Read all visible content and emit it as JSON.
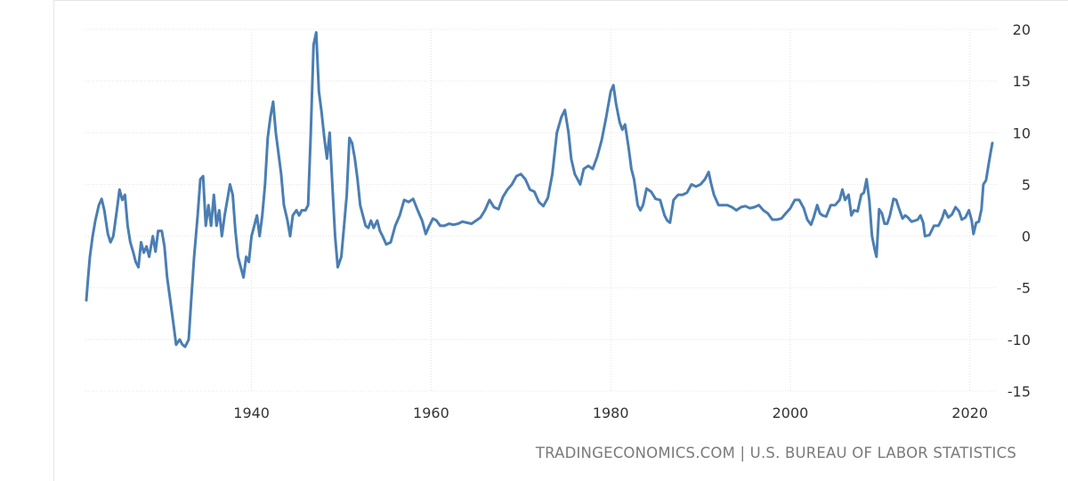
{
  "source_label": "TRADINGECONOMICS.COM | U.S. BUREAU OF LABOR STATISTICS",
  "chart_data": {
    "type": "line",
    "title": "",
    "xlabel": "",
    "ylabel": "",
    "xlim": [
      1921.5,
      2023
    ],
    "ylim": [
      -15,
      20
    ],
    "x_ticks": [
      1940,
      1960,
      1980,
      2000,
      2020
    ],
    "y_ticks": [
      -15,
      -10,
      -5,
      0,
      5,
      10,
      15,
      20
    ],
    "y_axis_side": "right",
    "grid": true,
    "line_color": "#4a7eb3",
    "series": [
      {
        "points": [
          [
            1921.6,
            -6.2
          ],
          [
            1921.8,
            -4.0
          ],
          [
            1922.0,
            -2.0
          ],
          [
            1922.3,
            0.0
          ],
          [
            1922.6,
            1.5
          ],
          [
            1923.0,
            3.0
          ],
          [
            1923.3,
            3.6
          ],
          [
            1923.6,
            2.5
          ],
          [
            1924.0,
            0.2
          ],
          [
            1924.3,
            -0.6
          ],
          [
            1924.6,
            0.0
          ],
          [
            1925.0,
            2.5
          ],
          [
            1925.3,
            4.5
          ],
          [
            1925.6,
            3.5
          ],
          [
            1925.9,
            4.0
          ],
          [
            1926.2,
            1.0
          ],
          [
            1926.5,
            -0.6
          ],
          [
            1926.8,
            -1.5
          ],
          [
            1927.1,
            -2.5
          ],
          [
            1927.4,
            -3.0
          ],
          [
            1927.7,
            -0.6
          ],
          [
            1928.0,
            -1.6
          ],
          [
            1928.3,
            -1.0
          ],
          [
            1928.6,
            -2.0
          ],
          [
            1929.0,
            0.0
          ],
          [
            1929.3,
            -1.5
          ],
          [
            1929.6,
            0.5
          ],
          [
            1930.0,
            0.5
          ],
          [
            1930.3,
            -1.0
          ],
          [
            1930.6,
            -4.0
          ],
          [
            1931.0,
            -6.5
          ],
          [
            1931.3,
            -8.5
          ],
          [
            1931.6,
            -10.5
          ],
          [
            1932.0,
            -10.0
          ],
          [
            1932.3,
            -10.5
          ],
          [
            1932.6,
            -10.7
          ],
          [
            1933.0,
            -10.0
          ],
          [
            1933.3,
            -6.0
          ],
          [
            1933.6,
            -2.0
          ],
          [
            1934.0,
            2.0
          ],
          [
            1934.3,
            5.5
          ],
          [
            1934.6,
            5.8
          ],
          [
            1934.9,
            1.0
          ],
          [
            1935.2,
            3.0
          ],
          [
            1935.5,
            1.0
          ],
          [
            1935.8,
            4.0
          ],
          [
            1936.1,
            1.0
          ],
          [
            1936.4,
            2.5
          ],
          [
            1936.7,
            0.0
          ],
          [
            1937.0,
            2.0
          ],
          [
            1937.3,
            3.5
          ],
          [
            1937.6,
            5.0
          ],
          [
            1937.9,
            4.0
          ],
          [
            1938.2,
            0.5
          ],
          [
            1938.5,
            -2.0
          ],
          [
            1938.8,
            -3.0
          ],
          [
            1939.1,
            -4.0
          ],
          [
            1939.4,
            -2.0
          ],
          [
            1939.7,
            -2.5
          ],
          [
            1940.0,
            0.0
          ],
          [
            1940.3,
            1.0
          ],
          [
            1940.6,
            2.0
          ],
          [
            1940.9,
            0.0
          ],
          [
            1941.2,
            2.0
          ],
          [
            1941.5,
            5.0
          ],
          [
            1941.8,
            9.5
          ],
          [
            1942.1,
            11.5
          ],
          [
            1942.4,
            13.0
          ],
          [
            1942.7,
            10.0
          ],
          [
            1943.0,
            8.0
          ],
          [
            1943.3,
            6.0
          ],
          [
            1943.6,
            3.0
          ],
          [
            1944.0,
            1.5
          ],
          [
            1944.3,
            0.0
          ],
          [
            1944.6,
            2.0
          ],
          [
            1945.0,
            2.5
          ],
          [
            1945.3,
            2.0
          ],
          [
            1945.6,
            2.5
          ],
          [
            1946.0,
            2.5
          ],
          [
            1946.3,
            3.0
          ],
          [
            1946.6,
            10.0
          ],
          [
            1946.9,
            18.5
          ],
          [
            1947.2,
            19.7
          ],
          [
            1947.5,
            14.0
          ],
          [
            1947.8,
            12.0
          ],
          [
            1948.1,
            9.5
          ],
          [
            1948.4,
            7.5
          ],
          [
            1948.7,
            10.0
          ],
          [
            1949.0,
            5.0
          ],
          [
            1949.3,
            0.0
          ],
          [
            1949.6,
            -3.0
          ],
          [
            1950.0,
            -2.0
          ],
          [
            1950.3,
            1.0
          ],
          [
            1950.6,
            4.0
          ],
          [
            1950.9,
            9.5
          ],
          [
            1951.2,
            9.0
          ],
          [
            1951.5,
            7.5
          ],
          [
            1951.8,
            5.5
          ],
          [
            1952.1,
            3.0
          ],
          [
            1952.4,
            2.0
          ],
          [
            1952.7,
            1.0
          ],
          [
            1953.0,
            0.8
          ],
          [
            1953.3,
            1.5
          ],
          [
            1953.6,
            0.8
          ],
          [
            1954.0,
            1.5
          ],
          [
            1954.3,
            0.5
          ],
          [
            1954.6,
            0.0
          ],
          [
            1955.0,
            -0.8
          ],
          [
            1955.5,
            -0.6
          ],
          [
            1956.0,
            1.0
          ],
          [
            1956.5,
            2.0
          ],
          [
            1957.0,
            3.5
          ],
          [
            1957.5,
            3.3
          ],
          [
            1958.0,
            3.6
          ],
          [
            1958.5,
            2.5
          ],
          [
            1959.0,
            1.5
          ],
          [
            1959.4,
            0.2
          ],
          [
            1959.8,
            1.0
          ],
          [
            1960.2,
            1.7
          ],
          [
            1960.6,
            1.5
          ],
          [
            1961.0,
            1.0
          ],
          [
            1961.5,
            1.0
          ],
          [
            1962.0,
            1.2
          ],
          [
            1962.5,
            1.1
          ],
          [
            1963.0,
            1.2
          ],
          [
            1963.5,
            1.4
          ],
          [
            1964.0,
            1.3
          ],
          [
            1964.5,
            1.2
          ],
          [
            1965.0,
            1.5
          ],
          [
            1965.5,
            1.8
          ],
          [
            1966.0,
            2.5
          ],
          [
            1966.5,
            3.5
          ],
          [
            1967.0,
            2.8
          ],
          [
            1967.5,
            2.6
          ],
          [
            1968.0,
            3.8
          ],
          [
            1968.5,
            4.5
          ],
          [
            1969.0,
            5.0
          ],
          [
            1969.5,
            5.8
          ],
          [
            1970.0,
            6.0
          ],
          [
            1970.5,
            5.5
          ],
          [
            1971.0,
            4.5
          ],
          [
            1971.5,
            4.3
          ],
          [
            1972.0,
            3.3
          ],
          [
            1972.5,
            2.9
          ],
          [
            1973.0,
            3.7
          ],
          [
            1973.5,
            6.0
          ],
          [
            1974.0,
            10.0
          ],
          [
            1974.5,
            11.5
          ],
          [
            1974.9,
            12.2
          ],
          [
            1975.3,
            10.0
          ],
          [
            1975.6,
            7.5
          ],
          [
            1976.0,
            6.0
          ],
          [
            1976.3,
            5.5
          ],
          [
            1976.6,
            5.0
          ],
          [
            1977.0,
            6.5
          ],
          [
            1977.5,
            6.8
          ],
          [
            1978.0,
            6.5
          ],
          [
            1978.5,
            7.7
          ],
          [
            1979.0,
            9.3
          ],
          [
            1979.5,
            11.5
          ],
          [
            1980.0,
            14.0
          ],
          [
            1980.3,
            14.6
          ],
          [
            1980.6,
            12.8
          ],
          [
            1981.0,
            11.0
          ],
          [
            1981.3,
            10.3
          ],
          [
            1981.6,
            10.8
          ],
          [
            1982.0,
            8.5
          ],
          [
            1982.3,
            6.5
          ],
          [
            1982.6,
            5.5
          ],
          [
            1983.0,
            3.0
          ],
          [
            1983.3,
            2.5
          ],
          [
            1983.6,
            3.0
          ],
          [
            1984.0,
            4.6
          ],
          [
            1984.5,
            4.3
          ],
          [
            1985.0,
            3.6
          ],
          [
            1985.5,
            3.5
          ],
          [
            1986.0,
            2.0
          ],
          [
            1986.3,
            1.5
          ],
          [
            1986.6,
            1.3
          ],
          [
            1987.0,
            3.5
          ],
          [
            1987.5,
            4.0
          ],
          [
            1988.0,
            4.0
          ],
          [
            1988.5,
            4.2
          ],
          [
            1989.0,
            5.0
          ],
          [
            1989.5,
            4.8
          ],
          [
            1990.0,
            5.0
          ],
          [
            1990.5,
            5.5
          ],
          [
            1990.9,
            6.2
          ],
          [
            1991.2,
            5.0
          ],
          [
            1991.5,
            4.0
          ],
          [
            1992.0,
            3.0
          ],
          [
            1992.5,
            3.0
          ],
          [
            1993.0,
            3.0
          ],
          [
            1993.5,
            2.8
          ],
          [
            1994.0,
            2.5
          ],
          [
            1994.5,
            2.8
          ],
          [
            1995.0,
            2.9
          ],
          [
            1995.5,
            2.7
          ],
          [
            1996.0,
            2.8
          ],
          [
            1996.5,
            3.0
          ],
          [
            1997.0,
            2.5
          ],
          [
            1997.5,
            2.2
          ],
          [
            1998.0,
            1.6
          ],
          [
            1998.5,
            1.6
          ],
          [
            1999.0,
            1.7
          ],
          [
            1999.5,
            2.2
          ],
          [
            2000.0,
            2.7
          ],
          [
            2000.5,
            3.5
          ],
          [
            2001.0,
            3.5
          ],
          [
            2001.5,
            2.7
          ],
          [
            2001.9,
            1.6
          ],
          [
            2002.3,
            1.1
          ],
          [
            2002.6,
            1.8
          ],
          [
            2003.0,
            3.0
          ],
          [
            2003.3,
            2.2
          ],
          [
            2003.6,
            2.0
          ],
          [
            2004.0,
            1.9
          ],
          [
            2004.5,
            3.0
          ],
          [
            2005.0,
            3.0
          ],
          [
            2005.5,
            3.5
          ],
          [
            2005.8,
            4.5
          ],
          [
            2006.1,
            3.5
          ],
          [
            2006.5,
            4.0
          ],
          [
            2006.8,
            2.0
          ],
          [
            2007.1,
            2.5
          ],
          [
            2007.5,
            2.4
          ],
          [
            2007.9,
            4.0
          ],
          [
            2008.2,
            4.2
          ],
          [
            2008.5,
            5.5
          ],
          [
            2008.8,
            3.5
          ],
          [
            2009.1,
            0.0
          ],
          [
            2009.4,
            -1.3
          ],
          [
            2009.6,
            -2.0
          ],
          [
            2009.9,
            2.6
          ],
          [
            2010.2,
            2.2
          ],
          [
            2010.5,
            1.2
          ],
          [
            2010.8,
            1.2
          ],
          [
            2011.1,
            2.0
          ],
          [
            2011.5,
            3.6
          ],
          [
            2011.8,
            3.5
          ],
          [
            2012.1,
            2.7
          ],
          [
            2012.5,
            1.7
          ],
          [
            2012.8,
            2.0
          ],
          [
            2013.1,
            1.8
          ],
          [
            2013.5,
            1.4
          ],
          [
            2013.9,
            1.5
          ],
          [
            2014.2,
            1.6
          ],
          [
            2014.5,
            2.0
          ],
          [
            2014.8,
            1.3
          ],
          [
            2015.0,
            0.0
          ],
          [
            2015.5,
            0.1
          ],
          [
            2016.0,
            1.0
          ],
          [
            2016.5,
            1.0
          ],
          [
            2016.9,
            1.7
          ],
          [
            2017.2,
            2.5
          ],
          [
            2017.6,
            1.8
          ],
          [
            2018.0,
            2.1
          ],
          [
            2018.4,
            2.8
          ],
          [
            2018.8,
            2.4
          ],
          [
            2019.1,
            1.6
          ],
          [
            2019.5,
            1.8
          ],
          [
            2019.9,
            2.5
          ],
          [
            2020.2,
            1.5
          ],
          [
            2020.4,
            0.2
          ],
          [
            2020.7,
            1.3
          ],
          [
            2021.0,
            1.4
          ],
          [
            2021.3,
            2.6
          ],
          [
            2021.5,
            5.0
          ],
          [
            2021.8,
            5.4
          ],
          [
            2022.1,
            7.0
          ],
          [
            2022.3,
            8.0
          ],
          [
            2022.5,
            9.0
          ]
        ]
      }
    ]
  }
}
